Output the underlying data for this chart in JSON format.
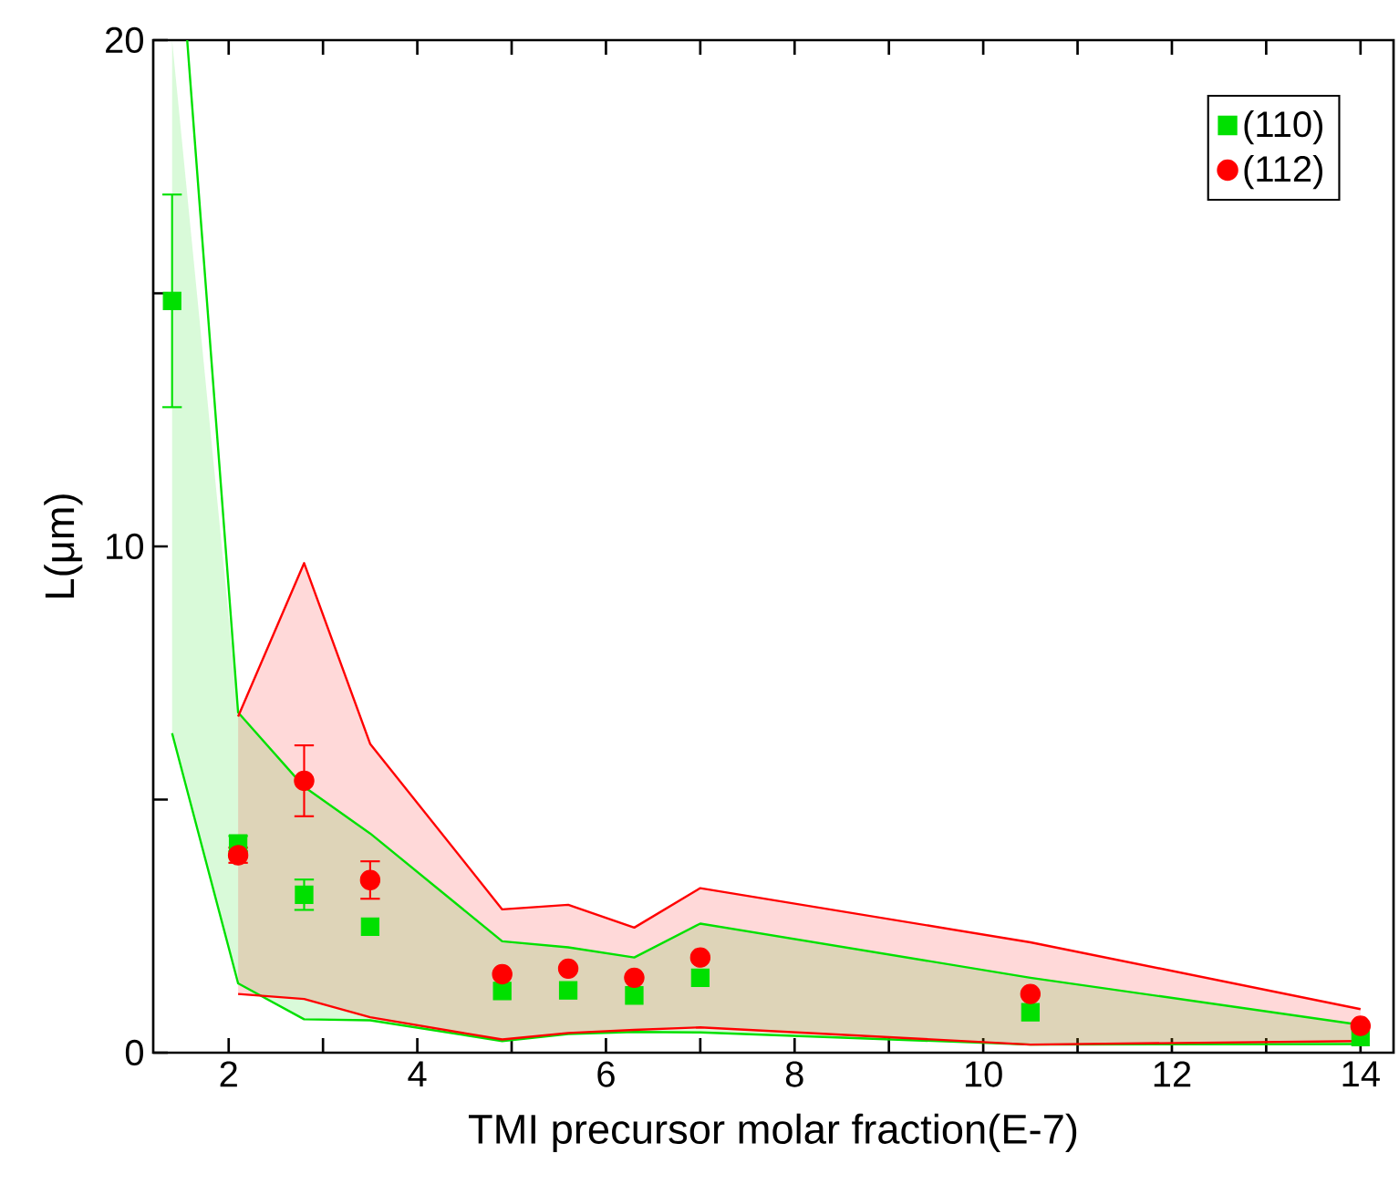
{
  "chart_data": {
    "type": "scatter",
    "xlabel": "TMI precursor molar fraction(E-7)",
    "ylabel": "L(μm)",
    "xlim": [
      1.2,
      14.35
    ],
    "ylim": [
      0,
      20
    ],
    "xticks": [
      2,
      {
        "value": 3,
        "label": null
      },
      4,
      {
        "value": 5,
        "label": null
      },
      6,
      {
        "value": 7,
        "label": null
      },
      8,
      {
        "value": 9,
        "label": null
      },
      10,
      {
        "value": 11,
        "label": null
      },
      12,
      {
        "value": 13,
        "label": null
      },
      14
    ],
    "yticks": [
      0,
      {
        "value": 5,
        "label": null
      },
      10,
      {
        "value": 15,
        "label": null
      },
      20
    ],
    "grid": false,
    "legend": "top right",
    "series": [
      {
        "name": "(110)",
        "color": "#00e000",
        "marker": "square",
        "x": [
          1.4,
          2.1,
          2.8,
          3.5,
          4.9,
          5.6,
          6.3,
          7,
          10.5,
          14
        ],
        "values": [
          14.85,
          4.13,
          3.12,
          2.49,
          1.22,
          1.23,
          1.13,
          1.48,
          0.8,
          0.31
        ],
        "errors": [
          2.1,
          0.15,
          0.3,
          null,
          null,
          null,
          null,
          null,
          null,
          null
        ],
        "lower": [
          6.31,
          1.37,
          0.66,
          0.64,
          0.23,
          0.37,
          0.41,
          0.4,
          0.16,
          0.17
        ],
        "upper": [
          20,
          6.72,
          5.25,
          4.33,
          2.2,
          2.08,
          1.88,
          2.55,
          1.48,
          0.55
        ]
      },
      {
        "name": "(112)",
        "color": "#ff0000",
        "marker": "circle",
        "x": [
          2.1,
          2.8,
          3.5,
          4.9,
          5.6,
          6.3,
          7,
          10.5,
          14
        ],
        "values": [
          3.9,
          5.37,
          3.41,
          1.55,
          1.66,
          1.48,
          1.88,
          1.16,
          0.53
        ],
        "errors": [
          0.15,
          0.7,
          0.37,
          null,
          null,
          null,
          null,
          null,
          null
        ],
        "lower": [
          1.16,
          1.06,
          0.7,
          0.26,
          0.39,
          0.45,
          0.5,
          0.16,
          0.23
        ],
        "upper": [
          6.64,
          9.67,
          6.1,
          2.83,
          2.92,
          2.47,
          3.25,
          2.18,
          0.86
        ]
      },
      {
        "type": "line",
        "color": "#00e000",
        "x": [
          1.56,
          2.1,
          2.8,
          3.5,
          4.9,
          5.6,
          6.3,
          7,
          10.5,
          14
        ],
        "values": [
          20,
          6.72,
          5.25,
          4.33,
          2.2,
          2.08,
          1.88,
          2.55,
          1.48,
          0.55
        ]
      },
      {
        "type": "line",
        "color": "#00e000",
        "x": [
          1.4,
          2.1,
          2.8,
          3.5,
          4.9,
          5.6,
          6.3,
          7,
          10.5,
          14
        ],
        "values": [
          6.31,
          1.37,
          0.66,
          0.64,
          0.23,
          0.37,
          0.41,
          0.4,
          0.16,
          0.17
        ]
      },
      {
        "type": "line",
        "color": "#ff0000",
        "x": [
          2.1,
          2.8,
          3.5,
          4.9,
          5.6,
          6.3,
          7,
          10.5,
          14
        ],
        "values": [
          6.64,
          9.67,
          6.1,
          2.83,
          2.92,
          2.47,
          3.25,
          2.18,
          0.86
        ]
      },
      {
        "type": "line",
        "color": "#ff0000",
        "x": [
          2.1,
          2.8,
          3.5,
          4.9,
          5.6,
          6.3,
          7,
          10.5,
          14
        ],
        "values": [
          1.16,
          1.06,
          0.7,
          0.26,
          0.39,
          0.45,
          0.5,
          0.16,
          0.23
        ]
      }
    ]
  }
}
